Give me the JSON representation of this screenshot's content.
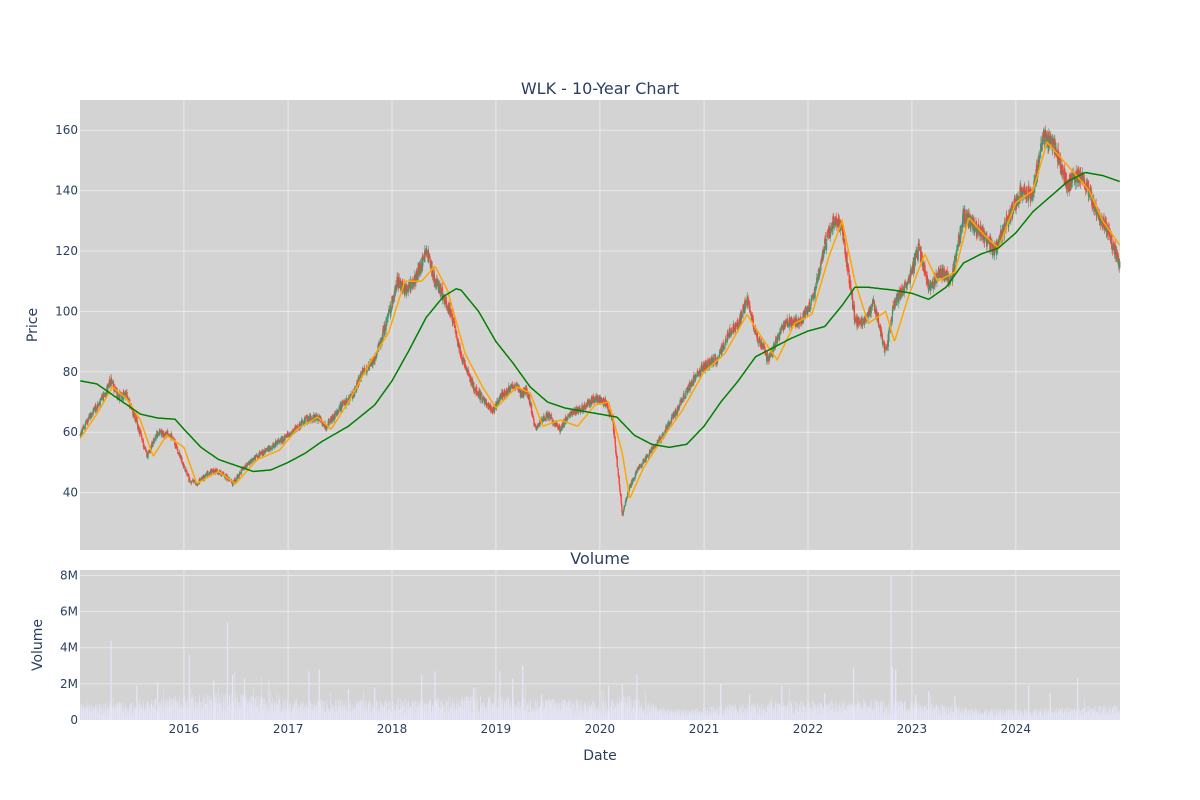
{
  "chart_data": [
    {
      "type": "candlestick",
      "title": "WLK - 10-Year Chart",
      "xlabel": "",
      "ylabel": "Price",
      "ylim": [
        21,
        170
      ],
      "yticks": [
        40,
        60,
        80,
        100,
        120,
        140,
        160
      ],
      "grid": true,
      "colors": {
        "background": "#d3d3d3",
        "grid": "#e9e9e9",
        "up": "#3d9970",
        "down": "#ff4136",
        "ma_short": "#ffa500",
        "ma_long": "#008000"
      },
      "close_anchors": [
        [
          "2015-01-02",
          59
        ],
        [
          "2015-02-01",
          65
        ],
        [
          "2015-03-15",
          70
        ],
        [
          "2015-04-20",
          77
        ],
        [
          "2015-05-15",
          72
        ],
        [
          "2015-06-15",
          72
        ],
        [
          "2015-07-20",
          63
        ],
        [
          "2015-08-25",
          52
        ],
        [
          "2015-10-01",
          60
        ],
        [
          "2015-11-15",
          59
        ],
        [
          "2015-12-15",
          53
        ],
        [
          "2016-01-20",
          44
        ],
        [
          "2016-02-15",
          43
        ],
        [
          "2016-04-01",
          47
        ],
        [
          "2016-05-01",
          47
        ],
        [
          "2016-06-01",
          45
        ],
        [
          "2016-06-20",
          43
        ],
        [
          "2016-07-20",
          47
        ],
        [
          "2016-09-01",
          51
        ],
        [
          "2016-11-01",
          55
        ],
        [
          "2017-01-01",
          59
        ],
        [
          "2017-03-01",
          64
        ],
        [
          "2017-04-15",
          65
        ],
        [
          "2017-05-15",
          62
        ],
        [
          "2017-07-01",
          68
        ],
        [
          "2017-08-15",
          72
        ],
        [
          "2017-09-20",
          80
        ],
        [
          "2017-11-01",
          84
        ],
        [
          "2017-12-15",
          97
        ],
        [
          "2018-01-20",
          110
        ],
        [
          "2018-02-15",
          107
        ],
        [
          "2018-03-20",
          110
        ],
        [
          "2018-05-01",
          120
        ],
        [
          "2018-06-01",
          110
        ],
        [
          "2018-07-01",
          105
        ],
        [
          "2018-08-01",
          98
        ],
        [
          "2018-09-01",
          85
        ],
        [
          "2018-10-15",
          75
        ],
        [
          "2018-11-15",
          71
        ],
        [
          "2018-12-20",
          67
        ],
        [
          "2019-01-20",
          72
        ],
        [
          "2019-03-15",
          76
        ],
        [
          "2019-04-01",
          72
        ],
        [
          "2019-04-20",
          74
        ],
        [
          "2019-05-20",
          61
        ],
        [
          "2019-07-01",
          66
        ],
        [
          "2019-08-15",
          61
        ],
        [
          "2019-09-15",
          66
        ],
        [
          "2019-11-01",
          68
        ],
        [
          "2019-12-15",
          71
        ],
        [
          "2020-01-20",
          70
        ],
        [
          "2020-02-15",
          64
        ],
        [
          "2020-03-20",
          33
        ],
        [
          "2020-04-15",
          42
        ],
        [
          "2020-05-15",
          48
        ],
        [
          "2020-06-15",
          52
        ],
        [
          "2020-08-01",
          58
        ],
        [
          "2020-10-01",
          68
        ],
        [
          "2020-11-15",
          76
        ],
        [
          "2021-01-01",
          82
        ],
        [
          "2021-02-15",
          84
        ],
        [
          "2021-04-01",
          93
        ],
        [
          "2021-05-01",
          96
        ],
        [
          "2021-06-01",
          104
        ],
        [
          "2021-07-01",
          93
        ],
        [
          "2021-08-15",
          84
        ],
        [
          "2021-10-15",
          97
        ],
        [
          "2021-12-01",
          96
        ],
        [
          "2022-01-20",
          104
        ],
        [
          "2022-03-01",
          122
        ],
        [
          "2022-04-01",
          130
        ],
        [
          "2022-05-01",
          128
        ],
        [
          "2022-06-15",
          97
        ],
        [
          "2022-07-15",
          96
        ],
        [
          "2022-08-20",
          103
        ],
        [
          "2022-10-01",
          86
        ],
        [
          "2022-11-01",
          103
        ],
        [
          "2022-12-20",
          110
        ],
        [
          "2023-01-25",
          121
        ],
        [
          "2023-03-01",
          108
        ],
        [
          "2023-04-15",
          113
        ],
        [
          "2023-05-20",
          110
        ],
        [
          "2023-07-01",
          132
        ],
        [
          "2023-08-15",
          128
        ],
        [
          "2023-10-20",
          120
        ],
        [
          "2023-12-15",
          133
        ],
        [
          "2024-01-20",
          140
        ],
        [
          "2024-03-01",
          139
        ],
        [
          "2024-04-05",
          158
        ],
        [
          "2024-05-15",
          155
        ],
        [
          "2024-06-01",
          150
        ],
        [
          "2024-07-01",
          142
        ],
        [
          "2024-08-01",
          145
        ],
        [
          "2024-09-01",
          143
        ],
        [
          "2024-10-15",
          132
        ],
        [
          "2024-11-15",
          128
        ],
        [
          "2024-12-31",
          115
        ]
      ],
      "ma_short_anchors": [
        [
          "2015-01-02",
          58
        ],
        [
          "2015-03-01",
          66
        ],
        [
          "2015-04-25",
          75
        ],
        [
          "2015-06-15",
          71
        ],
        [
          "2015-08-01",
          64
        ],
        [
          "2015-09-15",
          52
        ],
        [
          "2015-11-01",
          59
        ],
        [
          "2016-01-01",
          55
        ],
        [
          "2016-02-15",
          43
        ],
        [
          "2016-05-01",
          47
        ],
        [
          "2016-07-01",
          43
        ],
        [
          "2016-09-15",
          51
        ],
        [
          "2016-12-01",
          54
        ],
        [
          "2017-02-01",
          61
        ],
        [
          "2017-04-15",
          65
        ],
        [
          "2017-06-01",
          61
        ],
        [
          "2017-08-01",
          70
        ],
        [
          "2017-10-15",
          83
        ],
        [
          "2017-12-20",
          93
        ],
        [
          "2018-02-15",
          110
        ],
        [
          "2018-04-15",
          110
        ],
        [
          "2018-06-01",
          115
        ],
        [
          "2018-07-15",
          107
        ],
        [
          "2018-09-15",
          86
        ],
        [
          "2018-11-15",
          75
        ],
        [
          "2019-01-01",
          68
        ],
        [
          "2019-03-15",
          75
        ],
        [
          "2019-05-01",
          73
        ],
        [
          "2019-06-15",
          62
        ],
        [
          "2019-08-15",
          64
        ],
        [
          "2019-10-15",
          62
        ],
        [
          "2019-12-15",
          69
        ],
        [
          "2020-02-01",
          70
        ],
        [
          "2020-03-20",
          53
        ],
        [
          "2020-04-15",
          38
        ],
        [
          "2020-06-01",
          48
        ],
        [
          "2020-08-01",
          57
        ],
        [
          "2020-10-15",
          67
        ],
        [
          "2021-01-01",
          80
        ],
        [
          "2021-03-15",
          86
        ],
        [
          "2021-06-01",
          99
        ],
        [
          "2021-08-01",
          90
        ],
        [
          "2021-09-15",
          84
        ],
        [
          "2021-11-15",
          96
        ],
        [
          "2022-01-15",
          99
        ],
        [
          "2022-03-15",
          118
        ],
        [
          "2022-05-01",
          130
        ],
        [
          "2022-06-15",
          110
        ],
        [
          "2022-08-01",
          96
        ],
        [
          "2022-10-01",
          100
        ],
        [
          "2022-11-01",
          90
        ],
        [
          "2022-12-20",
          105
        ],
        [
          "2023-02-15",
          119
        ],
        [
          "2023-04-01",
          110
        ],
        [
          "2023-06-01",
          113
        ],
        [
          "2023-07-20",
          131
        ],
        [
          "2023-09-15",
          125
        ],
        [
          "2023-11-01",
          121
        ],
        [
          "2024-01-01",
          136
        ],
        [
          "2024-03-01",
          140
        ],
        [
          "2024-04-20",
          156
        ],
        [
          "2024-06-15",
          150
        ],
        [
          "2024-08-01",
          145
        ],
        [
          "2024-09-15",
          140
        ],
        [
          "2024-11-01",
          130
        ],
        [
          "2024-12-31",
          122
        ]
      ],
      "ma_long_anchors": [
        [
          "2015-01-02",
          77
        ],
        [
          "2015-03-01",
          76
        ],
        [
          "2015-05-01",
          72
        ],
        [
          "2015-08-01",
          66
        ],
        [
          "2015-10-01",
          64.7
        ],
        [
          "2015-12-01",
          64.3
        ],
        [
          "2016-01-01",
          61
        ],
        [
          "2016-03-01",
          55
        ],
        [
          "2016-05-01",
          51
        ],
        [
          "2016-07-01",
          49
        ],
        [
          "2016-09-01",
          47
        ],
        [
          "2016-11-01",
          47.5
        ],
        [
          "2017-01-01",
          50
        ],
        [
          "2017-03-01",
          53
        ],
        [
          "2017-05-01",
          57
        ],
        [
          "2017-08-01",
          62
        ],
        [
          "2017-11-01",
          69
        ],
        [
          "2018-01-01",
          77
        ],
        [
          "2018-03-01",
          87
        ],
        [
          "2018-05-01",
          98
        ],
        [
          "2018-07-01",
          105
        ],
        [
          "2018-08-15",
          107.5
        ],
        [
          "2018-09-01",
          107
        ],
        [
          "2018-11-01",
          100
        ],
        [
          "2019-01-01",
          90
        ],
        [
          "2019-03-01",
          83
        ],
        [
          "2019-05-01",
          75
        ],
        [
          "2019-07-01",
          70
        ],
        [
          "2019-09-01",
          68
        ],
        [
          "2019-11-01",
          67
        ],
        [
          "2020-01-01",
          66
        ],
        [
          "2020-03-01",
          65
        ],
        [
          "2020-05-01",
          59
        ],
        [
          "2020-07-01",
          56
        ],
        [
          "2020-09-01",
          55
        ],
        [
          "2020-11-01",
          56
        ],
        [
          "2021-01-01",
          62
        ],
        [
          "2021-03-01",
          70
        ],
        [
          "2021-05-01",
          77
        ],
        [
          "2021-07-01",
          85
        ],
        [
          "2021-09-01",
          88
        ],
        [
          "2021-11-01",
          91
        ],
        [
          "2022-01-01",
          93.5
        ],
        [
          "2022-03-01",
          95
        ],
        [
          "2022-05-01",
          102
        ],
        [
          "2022-06-15",
          108
        ],
        [
          "2022-08-01",
          108
        ],
        [
          "2022-11-01",
          107
        ],
        [
          "2023-01-01",
          106
        ],
        [
          "2023-03-01",
          104
        ],
        [
          "2023-05-01",
          108
        ],
        [
          "2023-07-01",
          116
        ],
        [
          "2023-09-01",
          119
        ],
        [
          "2023-11-01",
          121
        ],
        [
          "2024-01-01",
          126
        ],
        [
          "2024-03-01",
          133
        ],
        [
          "2024-05-01",
          138
        ],
        [
          "2024-07-01",
          143
        ],
        [
          "2024-09-01",
          146
        ],
        [
          "2024-11-01",
          145
        ],
        [
          "2024-12-31",
          143
        ]
      ]
    },
    {
      "type": "bar",
      "title": "Volume",
      "xlabel": "Date",
      "ylabel": "Volume",
      "ylim": [
        0,
        8300000
      ],
      "yticks": [
        0,
        2000000,
        4000000,
        6000000,
        8000000
      ],
      "ytick_labels": [
        "0",
        "2M",
        "4M",
        "6M",
        "8M"
      ],
      "xlim": [
        "2015-01-01",
        "2025-01-01"
      ],
      "xticks": [
        "2016-01-01",
        "2017-01-01",
        "2018-01-01",
        "2019-01-01",
        "2020-01-01",
        "2021-01-01",
        "2022-01-01",
        "2023-01-01",
        "2024-01-01"
      ],
      "xtick_labels": [
        "2016",
        "2017",
        "2018",
        "2019",
        "2020",
        "2021",
        "2022",
        "2023",
        "2024"
      ],
      "grid": true,
      "colors": {
        "background": "#d3d3d3",
        "grid": "#e9e9e9",
        "bar": "#e6e6fa"
      },
      "baseline_anchors": [
        [
          "2015-01-01",
          700000
        ],
        [
          "2015-06-01",
          650000
        ],
        [
          "2016-01-01",
          900000
        ],
        [
          "2016-06-01",
          1000000
        ],
        [
          "2017-01-01",
          750000
        ],
        [
          "2018-01-01",
          750000
        ],
        [
          "2019-01-01",
          900000
        ],
        [
          "2019-06-01",
          800000
        ],
        [
          "2020-01-01",
          700000
        ],
        [
          "2020-04-01",
          900000
        ],
        [
          "2020-09-01",
          400000
        ],
        [
          "2021-01-01",
          450000
        ],
        [
          "2021-06-01",
          650000
        ],
        [
          "2022-01-01",
          700000
        ],
        [
          "2022-06-01",
          750000
        ],
        [
          "2023-01-01",
          700000
        ],
        [
          "2023-06-01",
          500000
        ],
        [
          "2024-01-01",
          400000
        ],
        [
          "2024-06-01",
          450000
        ],
        [
          "2024-12-31",
          550000
        ]
      ],
      "spikes": [
        [
          "2015-04-20",
          4400000
        ],
        [
          "2015-07-20",
          1900000
        ],
        [
          "2015-10-01",
          2100000
        ],
        [
          "2016-01-20",
          3600000
        ],
        [
          "2016-04-15",
          2200000
        ],
        [
          "2016-06-02",
          5400000
        ],
        [
          "2016-06-20",
          2500000
        ],
        [
          "2016-08-01",
          2300000
        ],
        [
          "2017-03-15",
          2700000
        ],
        [
          "2017-04-20",
          2800000
        ],
        [
          "2017-08-01",
          1700000
        ],
        [
          "2017-11-01",
          1800000
        ],
        [
          "2018-04-15",
          2500000
        ],
        [
          "2018-06-01",
          2700000
        ],
        [
          "2018-10-15",
          1800000
        ],
        [
          "2019-01-15",
          2700000
        ],
        [
          "2019-03-01",
          2300000
        ],
        [
          "2019-04-05",
          3000000
        ],
        [
          "2019-06-10",
          1400000
        ],
        [
          "2020-02-01",
          1900000
        ],
        [
          "2020-03-20",
          2000000
        ],
        [
          "2020-05-10",
          2500000
        ],
        [
          "2021-03-01",
          2000000
        ],
        [
          "2021-06-10",
          1400000
        ],
        [
          "2021-10-01",
          1900000
        ],
        [
          "2022-03-01",
          1500000
        ],
        [
          "2022-06-10",
          2900000
        ],
        [
          "2022-10-20",
          8000000
        ],
        [
          "2022-10-25",
          2900000
        ],
        [
          "2022-11-05",
          2800000
        ],
        [
          "2023-01-15",
          1400000
        ],
        [
          "2023-03-01",
          1600000
        ],
        [
          "2023-06-01",
          1300000
        ],
        [
          "2024-02-15",
          1900000
        ],
        [
          "2024-05-01",
          1500000
        ],
        [
          "2024-08-05",
          2300000
        ]
      ]
    }
  ]
}
